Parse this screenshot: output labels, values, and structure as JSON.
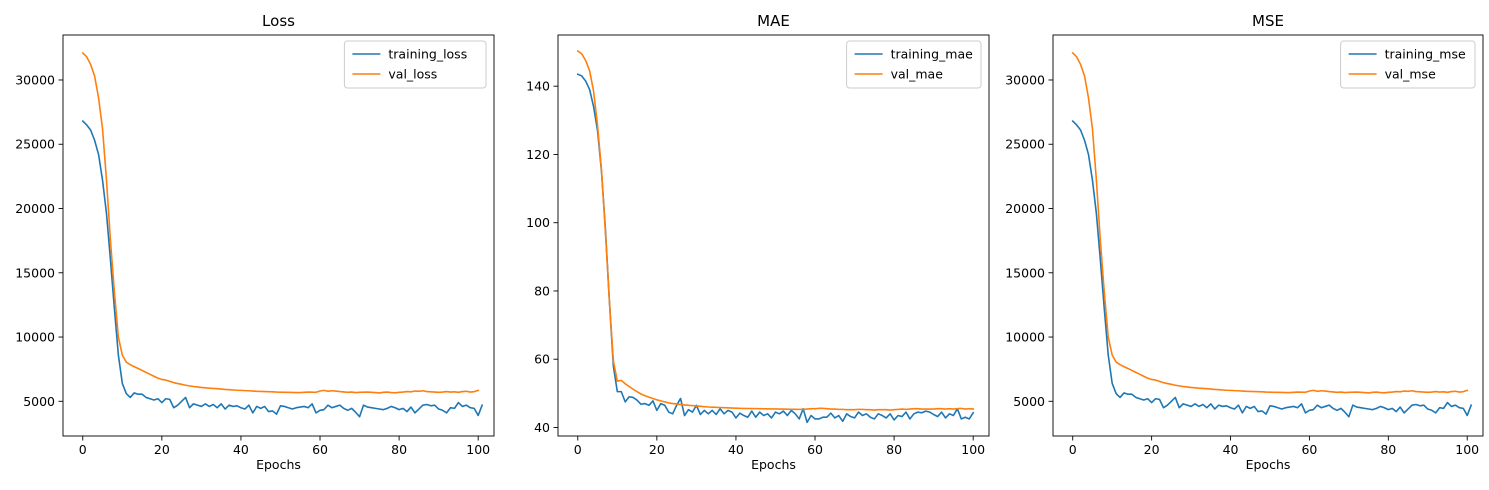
{
  "chart_data": [
    {
      "type": "line",
      "title": "Loss",
      "xlabel": "Epochs",
      "ylabel": "",
      "xlim": [
        -5,
        104
      ],
      "ylim": [
        2300,
        33500
      ],
      "xticks": [
        0,
        20,
        40,
        60,
        80,
        100
      ],
      "xtick_labels": [
        "0",
        "20",
        "40",
        "60",
        "80",
        "100"
      ],
      "yticks": [
        5000,
        10000,
        15000,
        20000,
        25000,
        30000
      ],
      "ytick_labels": [
        "5000",
        "10000",
        "15000",
        "20000",
        "25000",
        "30000"
      ],
      "legend_position": "top-right",
      "series": [
        {
          "name": "training_loss",
          "color": "#1f77b4",
          "values": [
            26800,
            26500,
            26100,
            25300,
            24200,
            22200,
            19600,
            16000,
            12200,
            8600,
            6400,
            5600,
            5300,
            5650,
            5550,
            5550,
            5300,
            5200,
            5100,
            5200,
            4900,
            5200,
            5150,
            4500,
            4700,
            5000,
            5300,
            4500,
            4800,
            4700,
            4600,
            4800,
            4600,
            4750,
            4500,
            4800,
            4400,
            4700,
            4600,
            4650,
            4500,
            4400,
            4700,
            4100,
            4600,
            4450,
            4600,
            4200,
            4250,
            4000,
            4650,
            4600,
            4500,
            4400,
            4500,
            4550,
            4600,
            4500,
            4800,
            4100,
            4300,
            4350,
            4700,
            4500,
            4600,
            4700,
            4450,
            4300,
            4450,
            4150,
            3800,
            4700,
            4550,
            4500,
            4450,
            4400,
            4350,
            4450,
            4600,
            4500,
            4350,
            4450,
            4200,
            4550,
            4100,
            4400,
            4700,
            4750,
            4650,
            4700,
            4400,
            4300,
            4100,
            4500,
            4450,
            4900,
            4600,
            4700,
            4500,
            4450,
            3900,
            4700
          ]
        },
        {
          "name": "val_loss",
          "color": "#ff7f0e",
          "values": [
            32100,
            31800,
            31200,
            30300,
            28600,
            26200,
            22200,
            17500,
            13500,
            10000,
            8600,
            8050,
            7850,
            7700,
            7550,
            7400,
            7250,
            7100,
            6950,
            6800,
            6700,
            6650,
            6550,
            6450,
            6380,
            6320,
            6250,
            6200,
            6150,
            6120,
            6080,
            6050,
            6020,
            6000,
            5980,
            5950,
            5920,
            5900,
            5880,
            5860,
            5850,
            5830,
            5820,
            5800,
            5780,
            5770,
            5760,
            5750,
            5740,
            5720,
            5710,
            5700,
            5700,
            5690,
            5680,
            5680,
            5700,
            5720,
            5710,
            5700,
            5800,
            5850,
            5780,
            5820,
            5800,
            5760,
            5730,
            5700,
            5720,
            5680,
            5700,
            5710,
            5720,
            5700,
            5680,
            5650,
            5700,
            5720,
            5680,
            5660,
            5700,
            5720,
            5760,
            5740,
            5800,
            5780,
            5820,
            5760,
            5740,
            5720,
            5700,
            5720,
            5760,
            5720,
            5740,
            5700,
            5760,
            5780,
            5720,
            5750,
            5850
          ]
        }
      ]
    },
    {
      "type": "line",
      "title": "MAE",
      "xlabel": "Epochs",
      "ylabel": "",
      "xlim": [
        -5,
        104
      ],
      "ylim": [
        37.5,
        155
      ],
      "xticks": [
        0,
        20,
        40,
        60,
        80,
        100
      ],
      "xtick_labels": [
        "0",
        "20",
        "40",
        "60",
        "80",
        "100"
      ],
      "yticks": [
        40,
        60,
        80,
        100,
        120,
        140
      ],
      "ytick_labels": [
        "40",
        "60",
        "80",
        "100",
        "120",
        "140"
      ],
      "legend_position": "top-right",
      "series": [
        {
          "name": "training_mae",
          "color": "#1f77b4",
          "values": [
            143.5,
            143.0,
            141.5,
            139.0,
            134.0,
            127.0,
            115.0,
            98.0,
            77.0,
            58.0,
            50.5,
            50.5,
            47.5,
            49.0,
            48.8,
            48.0,
            46.8,
            47.0,
            46.5,
            47.8,
            45.0,
            47.0,
            46.5,
            44.5,
            44.0,
            46.5,
            48.5,
            43.5,
            45.2,
            44.5,
            46.5,
            43.8,
            45.0,
            44.0,
            45.0,
            43.8,
            45.5,
            44.0,
            45.0,
            44.5,
            42.8,
            44.2,
            43.5,
            43.0,
            44.8,
            43.0,
            44.5,
            43.5,
            44.0,
            42.8,
            44.5,
            44.0,
            44.8,
            43.5,
            45.0,
            44.0,
            42.5,
            45.5,
            41.5,
            43.5,
            42.5,
            42.5,
            43.0,
            43.0,
            44.2,
            42.8,
            43.5,
            41.8,
            44.0,
            43.2,
            42.8,
            44.5,
            43.5,
            44.0,
            43.0,
            42.5,
            44.0,
            43.5,
            42.8,
            44.0,
            42.2,
            43.5,
            43.2,
            44.5,
            42.5,
            44.0,
            44.5,
            44.3,
            44.8,
            44.5,
            43.8,
            43.2,
            44.5,
            42.8,
            44.0,
            43.5,
            45.5,
            42.5,
            43.0,
            42.5,
            44.3
          ]
        },
        {
          "name": "val_mae",
          "color": "#ff7f0e",
          "values": [
            150.3,
            149.5,
            147.5,
            144.5,
            138.5,
            128.5,
            115.5,
            97.0,
            77.0,
            59.5,
            53.6,
            53.8,
            52.8,
            52.0,
            51.2,
            50.5,
            49.8,
            49.3,
            48.9,
            48.5,
            48.1,
            47.8,
            47.5,
            47.2,
            47.0,
            46.9,
            46.7,
            46.6,
            46.5,
            46.4,
            46.3,
            46.2,
            46.1,
            46.0,
            45.95,
            45.9,
            45.85,
            45.8,
            45.75,
            45.7,
            45.65,
            45.6,
            45.58,
            45.56,
            45.54,
            45.52,
            45.5,
            45.48,
            45.46,
            45.44,
            45.42,
            45.4,
            45.38,
            45.36,
            45.34,
            45.32,
            45.3,
            45.3,
            45.4,
            45.5,
            45.5,
            45.6,
            45.6,
            45.5,
            45.4,
            45.4,
            45.3,
            45.3,
            45.2,
            45.2,
            45.2,
            45.3,
            45.3,
            45.2,
            45.2,
            45.1,
            45.2,
            45.2,
            45.2,
            45.1,
            45.2,
            45.3,
            45.4,
            45.3,
            45.4,
            45.5,
            45.5,
            45.4,
            45.4,
            45.4,
            45.4,
            45.5,
            45.5,
            45.4,
            45.5,
            45.4,
            45.5,
            45.6,
            45.4,
            45.5,
            45.4
          ]
        }
      ]
    },
    {
      "type": "line",
      "title": "MSE",
      "xlabel": "Epochs",
      "ylabel": "",
      "xlim": [
        -5,
        104
      ],
      "ylim": [
        2300,
        33500
      ],
      "xticks": [
        0,
        20,
        40,
        60,
        80,
        100
      ],
      "xtick_labels": [
        "0",
        "20",
        "40",
        "60",
        "80",
        "100"
      ],
      "yticks": [
        5000,
        10000,
        15000,
        20000,
        25000,
        30000
      ],
      "ytick_labels": [
        "5000",
        "10000",
        "15000",
        "20000",
        "25000",
        "30000"
      ],
      "legend_position": "top-right",
      "series": [
        {
          "name": "training_mse",
          "color": "#1f77b4",
          "values": [
            26800,
            26500,
            26100,
            25300,
            24200,
            22200,
            19600,
            16000,
            12200,
            8600,
            6400,
            5600,
            5300,
            5650,
            5550,
            5550,
            5300,
            5200,
            5100,
            5200,
            4900,
            5200,
            5150,
            4500,
            4700,
            5000,
            5300,
            4500,
            4800,
            4700,
            4600,
            4800,
            4600,
            4750,
            4500,
            4800,
            4400,
            4700,
            4600,
            4650,
            4500,
            4400,
            4700,
            4100,
            4600,
            4450,
            4600,
            4200,
            4250,
            4000,
            4650,
            4600,
            4500,
            4400,
            4500,
            4550,
            4600,
            4500,
            4800,
            4100,
            4300,
            4350,
            4700,
            4500,
            4600,
            4700,
            4450,
            4300,
            4450,
            4150,
            3800,
            4700,
            4550,
            4500,
            4450,
            4400,
            4350,
            4450,
            4600,
            4500,
            4350,
            4450,
            4200,
            4550,
            4100,
            4400,
            4700,
            4750,
            4650,
            4700,
            4400,
            4300,
            4100,
            4500,
            4450,
            4900,
            4600,
            4700,
            4500,
            4450,
            3900,
            4700
          ]
        },
        {
          "name": "val_mse",
          "color": "#ff7f0e",
          "values": [
            32100,
            31800,
            31200,
            30300,
            28600,
            26200,
            22200,
            17500,
            13500,
            10000,
            8600,
            8050,
            7850,
            7700,
            7550,
            7400,
            7250,
            7100,
            6950,
            6800,
            6700,
            6650,
            6550,
            6450,
            6380,
            6320,
            6250,
            6200,
            6150,
            6120,
            6080,
            6050,
            6020,
            6000,
            5980,
            5950,
            5920,
            5900,
            5880,
            5860,
            5850,
            5830,
            5820,
            5800,
            5780,
            5770,
            5760,
            5750,
            5740,
            5720,
            5710,
            5700,
            5700,
            5690,
            5680,
            5680,
            5700,
            5720,
            5710,
            5700,
            5800,
            5850,
            5780,
            5820,
            5800,
            5760,
            5730,
            5700,
            5720,
            5680,
            5700,
            5710,
            5720,
            5700,
            5680,
            5650,
            5700,
            5720,
            5680,
            5660,
            5700,
            5720,
            5760,
            5740,
            5800,
            5780,
            5820,
            5760,
            5740,
            5720,
            5700,
            5720,
            5760,
            5720,
            5740,
            5700,
            5760,
            5780,
            5720,
            5750,
            5850
          ]
        }
      ]
    }
  ]
}
